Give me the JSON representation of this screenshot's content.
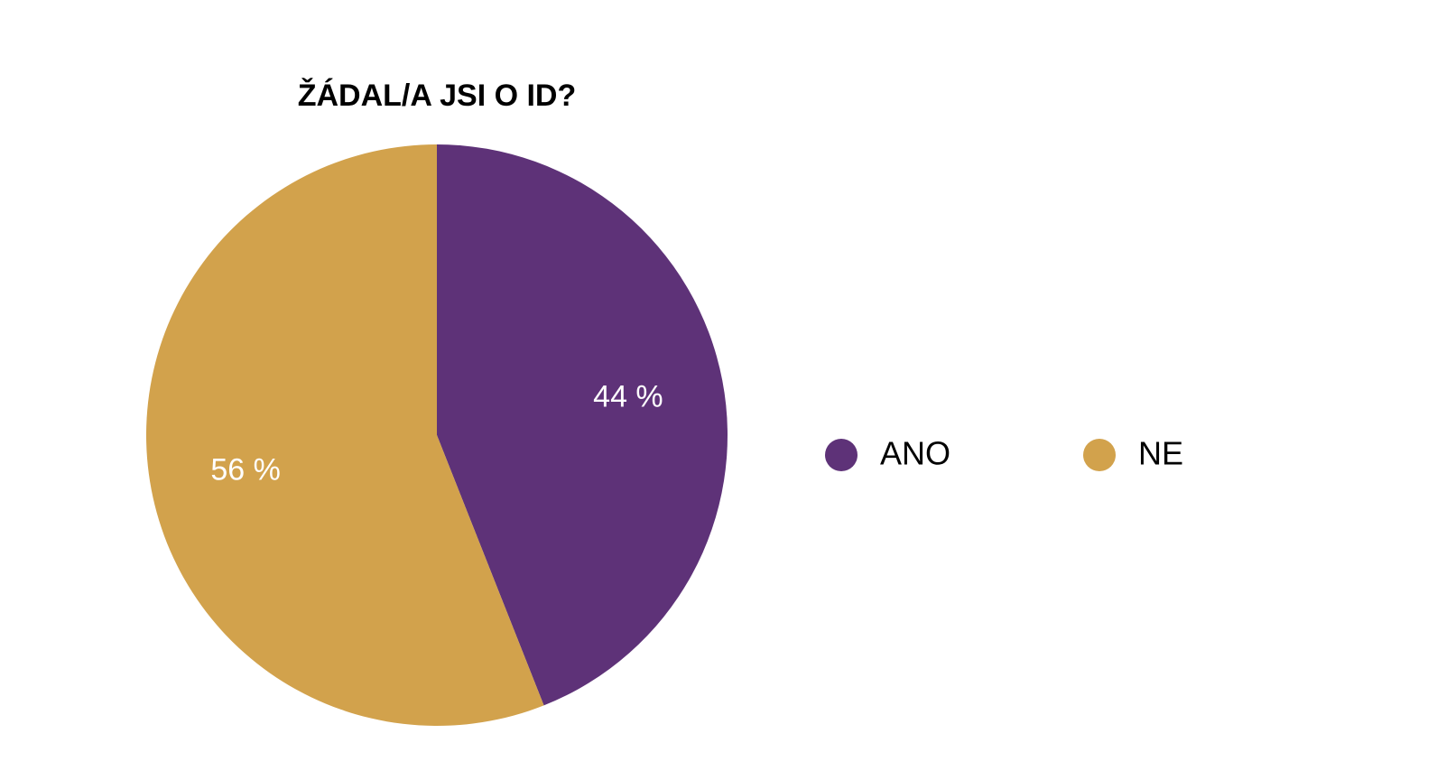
{
  "chart_data": {
    "type": "pie",
    "title": "ŽÁDAL/A JSI O ID?",
    "categories": [
      "ANO",
      "NE"
    ],
    "values": [
      44,
      56
    ],
    "value_labels": [
      "44 %",
      "56 %"
    ],
    "colors": [
      "#5e3278",
      "#d2a24c"
    ],
    "legend": "right"
  }
}
